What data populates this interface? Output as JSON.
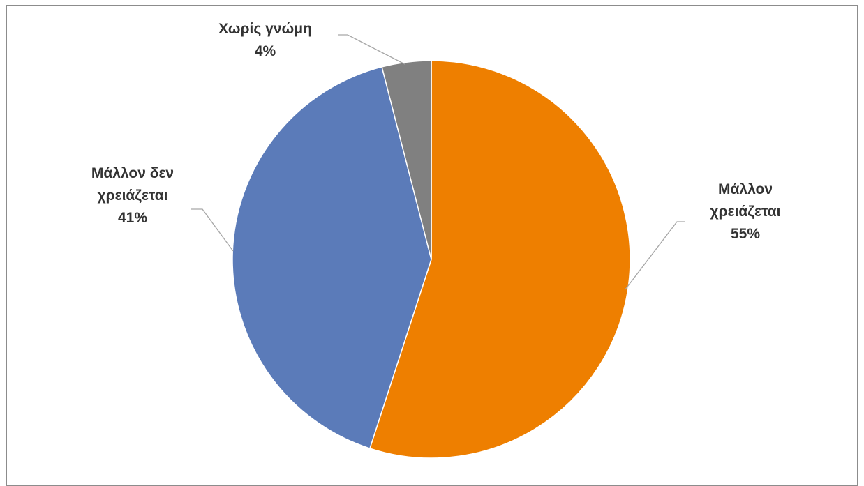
{
  "chart_data": {
    "type": "pie",
    "slices": [
      {
        "name": "Μάλλον χρειάζεται",
        "lines": [
          "Μάλλον",
          "χρειάζεται",
          "55%"
        ],
        "value": 55,
        "color": "#ee7f00"
      },
      {
        "name": "Μάλλον δεν χρειάζεται",
        "lines": [
          "Μάλλον δεν",
          "χρειάζεται",
          "41%"
        ],
        "value": 41,
        "color": "#5b7bb9"
      },
      {
        "name": "Χωρίς γνώμη",
        "lines": [
          "Χωρίς γνώμη",
          "4%"
        ],
        "value": 4,
        "color": "#808080"
      }
    ],
    "start_angle_deg": 0,
    "direction": "clockwise",
    "data_labels": "outside-with-leader-lines",
    "legend": "none",
    "leader_line_color": "#a6a6a6",
    "slice_border_color": "#ffffff"
  }
}
